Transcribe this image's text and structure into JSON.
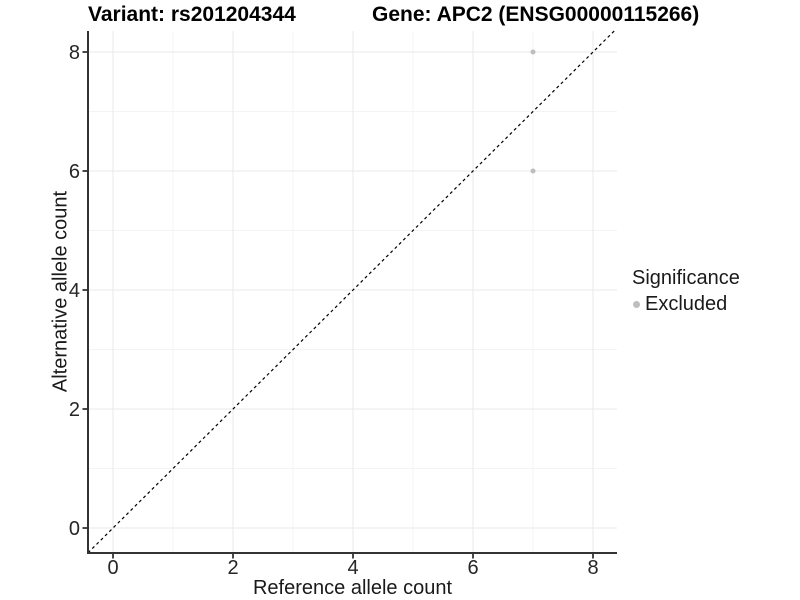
{
  "header": {
    "variant_title": "Variant: rs201204344",
    "gene_title": "Gene: APC2 (ENSG00000115266)"
  },
  "chart_data": {
    "type": "scatter",
    "title": "Variant: rs201204344 / Gene: APC2 (ENSG00000115266)",
    "xlabel": "Reference allele count",
    "ylabel": "Alternative allele count",
    "xlim": [
      -0.417,
      8.4
    ],
    "ylim": [
      -0.42,
      8.353
    ],
    "x_major_ticks": [
      0,
      2,
      4,
      6,
      8
    ],
    "x_minor_ticks": [
      1,
      3,
      5,
      7
    ],
    "y_major_ticks": [
      0,
      2,
      4,
      6,
      8
    ],
    "y_minor_ticks": [
      1,
      3,
      5,
      7
    ],
    "grid": true,
    "identity_line": {
      "equation": "y = x",
      "style": "dashed",
      "color": "#000000"
    },
    "series": [
      {
        "name": "Excluded",
        "color": "#bebebe",
        "point_radius": 2.5,
        "points": [
          {
            "x": 7,
            "y": 8
          },
          {
            "x": 7,
            "y": 6
          }
        ]
      }
    ],
    "legend": {
      "position": "right",
      "title": "Significance",
      "entries": [
        {
          "label": "Excluded",
          "color": "#bebebe"
        }
      ]
    }
  },
  "colors": {
    "background": "#ffffff",
    "axis_line": "#333333",
    "tick_text": "#262626",
    "major_grid": "#e9e9e9",
    "minor_grid": "#f4f4f4"
  }
}
